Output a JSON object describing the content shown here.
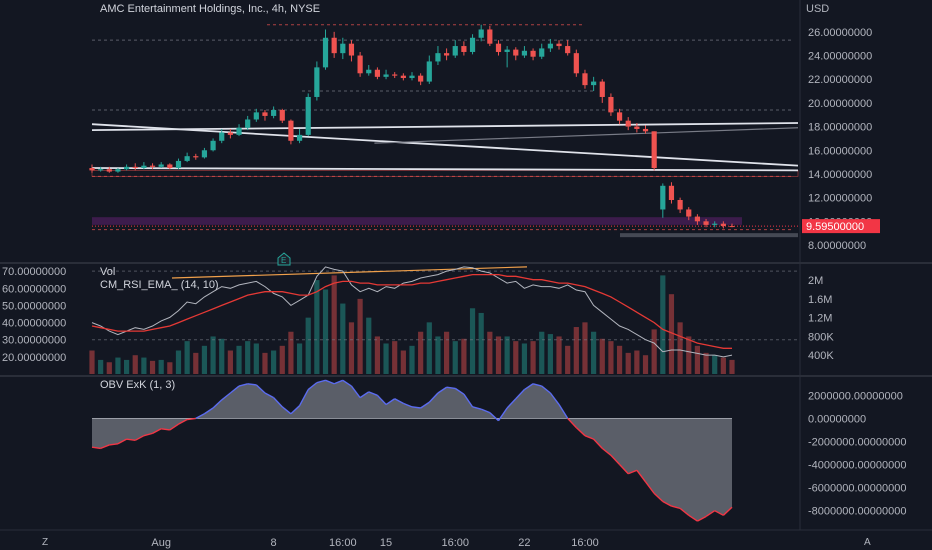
{
  "header": {
    "title": "AMC Entertainment Holdings, Inc., 4h, NYSE",
    "currency": "USD"
  },
  "colors": {
    "background": "#131722",
    "up": "#26a69a",
    "down": "#ef5350",
    "price_tag": "#f23645",
    "obv_line_pos": "#5b6cf0",
    "obv_line_neg": "#f23645"
  },
  "chart_data": [
    {
      "type": "candlestick",
      "title": "AMC Entertainment Holdings, Inc., 4h, NYSE",
      "ylim": [
        8,
        27
      ],
      "y_ticks": [
        "26.00000000",
        "24.00000000",
        "22.00000000",
        "20.00000000",
        "18.00000000",
        "16.00000000",
        "14.00000000",
        "12.00000000",
        "10.00000000",
        "8.00000000"
      ],
      "y_tick_values": [
        26,
        24,
        22,
        20,
        18,
        16,
        14,
        12,
        10,
        8
      ],
      "last_price_label": "9.59500000",
      "last_price": 9.595,
      "candles": [
        [
          14.5,
          14.3,
          14.8,
          14.1
        ],
        [
          14.3,
          14.4,
          14.6,
          14.2
        ],
        [
          14.4,
          14.2,
          14.6,
          14.1
        ],
        [
          14.2,
          14.4,
          14.5,
          14.1
        ],
        [
          14.4,
          14.6,
          14.8,
          14.3
        ],
        [
          14.6,
          14.5,
          14.9,
          14.3
        ],
        [
          14.5,
          14.7,
          15.0,
          14.4
        ],
        [
          14.7,
          14.6,
          14.9,
          14.4
        ],
        [
          14.6,
          14.8,
          15.0,
          14.5
        ],
        [
          14.8,
          14.5,
          14.9,
          14.4
        ],
        [
          14.5,
          15.1,
          15.3,
          14.4
        ],
        [
          15.1,
          15.5,
          15.8,
          15.0
        ],
        [
          15.5,
          15.4,
          15.7,
          15.2
        ],
        [
          15.4,
          16.0,
          16.2,
          15.3
        ],
        [
          16.0,
          16.8,
          17.0,
          15.9
        ],
        [
          16.8,
          17.5,
          17.8,
          16.6
        ],
        [
          17.5,
          17.3,
          17.8,
          17.0
        ],
        [
          17.3,
          17.9,
          18.2,
          17.2
        ],
        [
          17.9,
          18.6,
          18.9,
          17.7
        ],
        [
          18.6,
          19.2,
          19.5,
          18.4
        ],
        [
          19.2,
          18.9,
          19.4,
          18.5
        ],
        [
          18.9,
          19.4,
          19.7,
          18.7
        ],
        [
          19.4,
          18.5,
          19.5,
          18.3
        ],
        [
          18.5,
          16.8,
          18.6,
          16.5
        ],
        [
          16.8,
          17.3,
          17.8,
          16.6
        ],
        [
          17.3,
          20.5,
          20.8,
          17.2
        ],
        [
          20.5,
          23.0,
          23.5,
          20.2
        ],
        [
          23.0,
          25.5,
          26.2,
          22.8
        ],
        [
          25.5,
          24.2,
          26.0,
          23.8
        ],
        [
          24.2,
          25.0,
          25.5,
          23.7
        ],
        [
          25.0,
          24.0,
          25.3,
          23.5
        ],
        [
          24.0,
          22.5,
          24.3,
          22.2
        ],
        [
          22.5,
          22.8,
          23.2,
          22.3
        ],
        [
          22.8,
          22.2,
          23.0,
          22.0
        ],
        [
          22.2,
          22.4,
          22.8,
          22.0
        ],
        [
          22.4,
          22.3,
          22.6,
          22.1
        ],
        [
          22.3,
          22.1,
          22.5,
          21.9
        ],
        [
          22.1,
          22.3,
          22.6,
          21.9
        ],
        [
          22.3,
          21.8,
          22.5,
          21.5
        ],
        [
          21.8,
          23.5,
          24.0,
          21.6
        ],
        [
          23.5,
          24.2,
          24.8,
          23.2
        ],
        [
          24.2,
          24.0,
          24.6,
          23.6
        ],
        [
          24.0,
          24.8,
          25.3,
          23.8
        ],
        [
          24.8,
          24.3,
          25.2,
          24.0
        ],
        [
          24.3,
          25.5,
          25.8,
          24.1
        ],
        [
          25.5,
          26.2,
          26.6,
          25.2
        ],
        [
          26.2,
          25.0,
          26.5,
          24.8
        ],
        [
          25.0,
          24.3,
          25.3,
          24.0
        ],
        [
          24.3,
          24.5,
          24.8,
          23.0
        ],
        [
          24.5,
          24.0,
          24.7,
          23.6
        ],
        [
          24.0,
          24.4,
          24.8,
          23.8
        ],
        [
          24.4,
          23.9,
          24.6,
          23.6
        ],
        [
          23.9,
          24.6,
          25.0,
          23.7
        ],
        [
          24.6,
          25.0,
          25.4,
          24.3
        ],
        [
          25.0,
          24.8,
          25.3,
          24.5
        ],
        [
          24.8,
          24.2,
          25.3,
          24.0
        ],
        [
          24.2,
          22.5,
          24.5,
          22.2
        ],
        [
          22.5,
          21.5,
          22.8,
          21.2
        ],
        [
          21.5,
          21.8,
          22.2,
          21.0
        ],
        [
          21.8,
          20.5,
          22.0,
          20.0
        ],
        [
          20.5,
          19.2,
          20.8,
          18.9
        ],
        [
          19.2,
          18.5,
          19.5,
          18.2
        ],
        [
          18.5,
          18.0,
          18.8,
          17.7
        ],
        [
          18.0,
          17.8,
          18.3,
          17.5
        ],
        [
          17.8,
          17.6,
          18.1,
          17.4
        ],
        [
          17.6,
          14.5,
          17.6,
          14.3
        ],
        [
          11.0,
          13.0,
          13.2,
          10.3
        ],
        [
          13.0,
          11.8,
          13.3,
          11.5
        ],
        [
          11.8,
          11.0,
          12.0,
          10.7
        ],
        [
          11.0,
          10.4,
          11.2,
          10.1
        ],
        [
          10.4,
          10.0,
          10.6,
          9.7
        ],
        [
          10.0,
          9.7,
          10.2,
          9.5
        ],
        [
          9.7,
          9.8,
          10.0,
          9.5
        ],
        [
          9.8,
          9.6,
          10.0,
          9.4
        ],
        [
          9.6,
          9.595,
          9.8,
          9.5
        ]
      ],
      "trendlines": [
        {
          "x0": 0,
          "y0": 18.2,
          "x1": 1,
          "y1": 14.7
        },
        {
          "x0": 0,
          "y0": 17.7,
          "x1": 1,
          "y1": 18.3
        },
        {
          "x0": 0.4,
          "y0": 16.6,
          "x1": 1,
          "y1": 17.9
        },
        {
          "x0": 0,
          "y0": 14.5,
          "x1": 1,
          "y1": 14.3
        }
      ]
    },
    {
      "type": "line",
      "title": "CM_RSI_EMA_ (14, 10)",
      "ylim": [
        10,
        73
      ],
      "y_ticks": [
        "70.00000000",
        "60.00000000",
        "50.00000000",
        "40.00000000",
        "30.00000000",
        "20.00000000"
      ],
      "y_tick_values": [
        70,
        60,
        50,
        40,
        30,
        20
      ],
      "series": [
        {
          "name": "RSI",
          "values": [
            40,
            38,
            35,
            33,
            35,
            37,
            36,
            38,
            41,
            43,
            47,
            52,
            51,
            55,
            58,
            61,
            60,
            62,
            63,
            64,
            61,
            57,
            55,
            50,
            53,
            56,
            67,
            74,
            71,
            70,
            62,
            58,
            60,
            58,
            61,
            60,
            63,
            64,
            66,
            67,
            68,
            70,
            71,
            73,
            72,
            70,
            69,
            66,
            63,
            64,
            60,
            62,
            61,
            61,
            60,
            62,
            59,
            58,
            50,
            46,
            42,
            38,
            36,
            33,
            30,
            28,
            23,
            24,
            24,
            23,
            22,
            21,
            21,
            20,
            21
          ]
        },
        {
          "name": "EMA",
          "values": [
            38,
            37,
            36,
            35,
            35,
            35,
            35,
            36,
            37,
            38,
            40,
            42,
            44,
            46,
            48,
            50,
            52,
            54,
            56,
            57,
            58,
            58,
            58,
            57,
            56,
            56,
            58,
            61,
            63,
            64,
            64,
            63,
            63,
            62,
            62,
            62,
            62,
            62,
            63,
            63,
            64,
            65,
            66,
            67,
            68,
            68,
            68,
            68,
            67,
            67,
            66,
            65,
            65,
            64,
            63,
            63,
            62,
            61,
            59,
            57,
            55,
            52,
            49,
            46,
            43,
            40,
            36,
            34,
            32,
            30,
            28,
            27,
            26,
            25,
            25
          ]
        }
      ]
    },
    {
      "type": "bar",
      "title": "Vol",
      "y_ticks": [
        "2M",
        "1.6M",
        "1.2M",
        "800K",
        "400K"
      ],
      "y_tick_values": [
        2000000,
        1600000,
        1200000,
        800000,
        400000
      ],
      "ylim": [
        0,
        2300000
      ],
      "values": [
        500000,
        300000,
        250000,
        350000,
        300000,
        400000,
        350000,
        280000,
        300000,
        250000,
        500000,
        700000,
        450000,
        600000,
        800000,
        750000,
        500000,
        600000,
        700000,
        650000,
        450000,
        500000,
        600000,
        900000,
        650000,
        1200000,
        2000000,
        1800000,
        2100000,
        1500000,
        1100000,
        1600000,
        1200000,
        800000,
        650000,
        700000,
        500000,
        600000,
        900000,
        1100000,
        800000,
        900000,
        700000,
        750000,
        1400000,
        1300000,
        900000,
        800000,
        800000,
        700000,
        650000,
        700000,
        900000,
        850000,
        800000,
        600000,
        1000000,
        1100000,
        900000,
        750000,
        700000,
        600000,
        450000,
        500000,
        400000,
        950000,
        2100000,
        1700000,
        1100000,
        800000,
        600000,
        450000,
        400000,
        350000,
        300000
      ],
      "up_flags": [
        0,
        1,
        0,
        1,
        1,
        0,
        1,
        0,
        1,
        0,
        1,
        1,
        0,
        1,
        1,
        1,
        0,
        1,
        1,
        1,
        0,
        1,
        0,
        0,
        1,
        1,
        1,
        1,
        0,
        1,
        0,
        0,
        1,
        0,
        1,
        0,
        0,
        1,
        0,
        1,
        1,
        0,
        1,
        0,
        1,
        1,
        0,
        0,
        1,
        0,
        1,
        0,
        1,
        1,
        0,
        0,
        0,
        0,
        1,
        0,
        0,
        0,
        0,
        0,
        0,
        0,
        1,
        0,
        0,
        0,
        0,
        0,
        1,
        0,
        0
      ]
    },
    {
      "type": "area",
      "title": "OBV ExK (1, 3)",
      "ylim": [
        -9500000,
        3500000
      ],
      "y_ticks": [
        "2000000.00000000",
        "0.00000000",
        "-2000000.00000000",
        "-4000000.00000000",
        "-6000000.00000000",
        "-8000000.00000000"
      ],
      "y_tick_values": [
        2000000,
        0,
        -2000000,
        -4000000,
        -6000000,
        -8000000
      ],
      "values": [
        -2500000,
        -2600000,
        -2300000,
        -2200000,
        -1800000,
        -1900000,
        -1500000,
        -1300000,
        -900000,
        -1000000,
        -500000,
        -100000,
        0,
        400000,
        900000,
        1600000,
        2200000,
        2800000,
        3000000,
        2900000,
        2200000,
        1800000,
        1000000,
        400000,
        1100000,
        2500000,
        3100000,
        3300000,
        3000000,
        3300000,
        2800000,
        1800000,
        2300000,
        2000000,
        1200000,
        1700000,
        1300000,
        1000000,
        900000,
        1400000,
        2200000,
        2700000,
        2600000,
        2100000,
        1000000,
        800000,
        500000,
        -200000,
        900000,
        1700000,
        2500000,
        3000000,
        2800000,
        2200000,
        1200000,
        0,
        -800000,
        -1500000,
        -1800000,
        -2600000,
        -3200000,
        -4000000,
        -4800000,
        -4500000,
        -5500000,
        -6500000,
        -7200000,
        -7600000,
        -7800000,
        -8400000,
        -8900000,
        -8500000,
        -8000000,
        -8400000,
        -7700000
      ]
    }
  ],
  "x_axis": {
    "labels": [
      "Aug",
      "8",
      "16:00",
      "15",
      "16:00",
      "22",
      "16:00"
    ],
    "label_index": [
      8,
      21,
      29,
      34,
      42,
      50,
      57
    ]
  },
  "markers": {
    "earnings_badge": "E"
  },
  "footer": {
    "left_icon": "zoom-icon",
    "right_icon": "auto-scale-icon",
    "left_glyph": "Z",
    "right_glyph": "A"
  }
}
